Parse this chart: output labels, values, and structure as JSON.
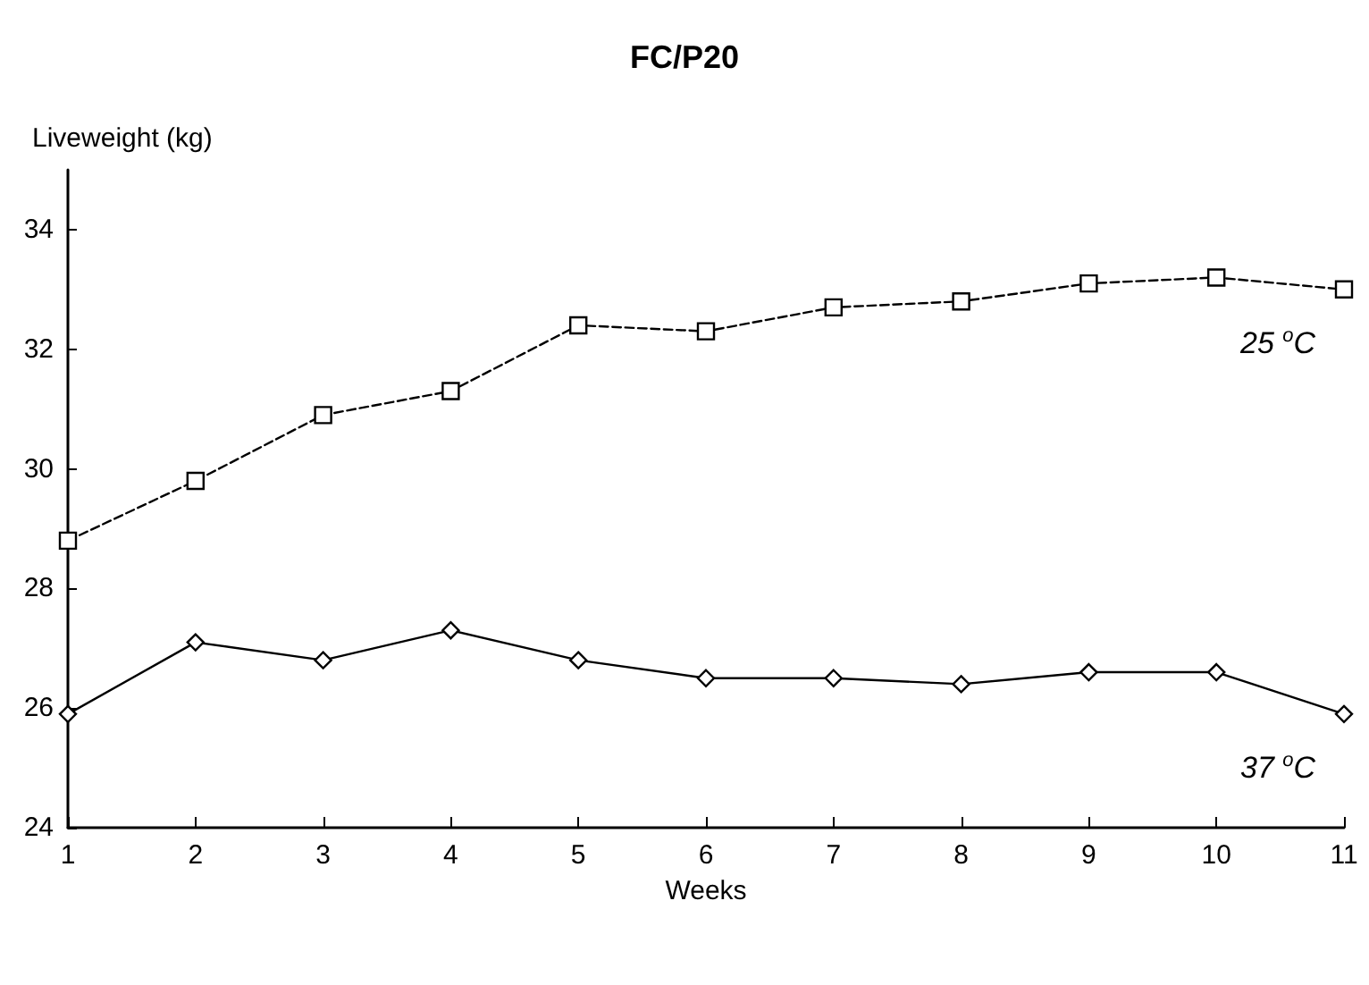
{
  "chart_data": {
    "type": "line",
    "title": "FC/P20",
    "xlabel": "Weeks",
    "ylabel": "Liveweight (kg)",
    "x": [
      1,
      2,
      3,
      4,
      5,
      6,
      7,
      8,
      9,
      10,
      11
    ],
    "series": [
      {
        "color": "#000000",
        "marker": "square",
        "line_style": "dashed",
        "values": [
          28.8,
          29.8,
          30.9,
          31.3,
          32.4,
          32.3,
          32.7,
          32.8,
          33.1,
          33.2,
          33.0
        ]
      },
      {
        "color": "#000000",
        "marker": "diamond",
        "line_style": "solid",
        "values": [
          25.9,
          27.1,
          26.8,
          27.3,
          26.8,
          26.5,
          26.5,
          26.4,
          26.6,
          26.6,
          25.9
        ]
      }
    ],
    "xlim": [
      1,
      11
    ],
    "xticks": [
      1,
      2,
      3,
      4,
      5,
      6,
      7,
      8,
      9,
      10,
      11
    ],
    "ylim": [
      24,
      35
    ],
    "yticks": [
      24,
      26,
      28,
      30,
      32,
      34
    ],
    "grid": false,
    "annotations": [
      "25 $^{o}$C",
      "37 $^{o}$C"
    ]
  }
}
